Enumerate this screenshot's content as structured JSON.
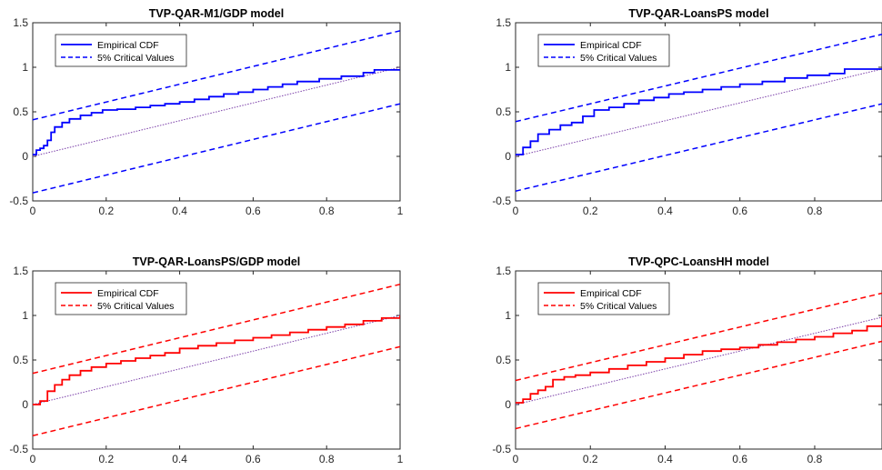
{
  "chart_data": [
    {
      "type": "line",
      "title": "TVP-QAR-M1/GDP model",
      "xlim": [
        0,
        1
      ],
      "ylim": [
        -0.5,
        1.5
      ],
      "xticks": [
        "0",
        "0.2",
        "0.4",
        "0.6",
        "0.8",
        "1"
      ],
      "yticks": [
        "-0.5",
        "0",
        "0.5",
        "1",
        "1.5"
      ],
      "legend_position": "top-left",
      "color": "#0000ff",
      "critical_offset": 0.41,
      "legend": [
        "Empirical CDF",
        "5% Critical Values"
      ],
      "series": [
        {
          "name": "Empirical CDF",
          "style": "solid",
          "x": [
            0,
            0.01,
            0.02,
            0.03,
            0.04,
            0.05,
            0.06,
            0.08,
            0.1,
            0.13,
            0.16,
            0.19,
            0.23,
            0.28,
            0.32,
            0.36,
            0.4,
            0.44,
            0.48,
            0.52,
            0.56,
            0.6,
            0.64,
            0.68,
            0.72,
            0.78,
            0.84,
            0.9,
            0.93,
            1.0
          ],
          "y": [
            0.02,
            0.07,
            0.09,
            0.12,
            0.18,
            0.27,
            0.33,
            0.38,
            0.42,
            0.46,
            0.49,
            0.52,
            0.53,
            0.55,
            0.57,
            0.59,
            0.61,
            0.64,
            0.67,
            0.7,
            0.72,
            0.75,
            0.78,
            0.81,
            0.84,
            0.87,
            0.9,
            0.94,
            0.97,
            0.98
          ]
        }
      ]
    },
    {
      "type": "line",
      "title": "TVP-QAR-LoansPS model",
      "xlim": [
        0,
        0.98
      ],
      "ylim": [
        -0.5,
        1.5
      ],
      "xticks": [
        "0",
        "0.2",
        "0.4",
        "0.6",
        "0.8"
      ],
      "yticks": [
        "-0.5",
        "0",
        "0.5",
        "1",
        "1.5"
      ],
      "legend_position": "top-left",
      "color": "#0000ff",
      "critical_offset": 0.39,
      "legend": [
        "Empirical CDF",
        "5% Critical Values"
      ],
      "series": [
        {
          "name": "Empirical CDF",
          "style": "solid",
          "x": [
            0,
            0.02,
            0.04,
            0.06,
            0.09,
            0.12,
            0.15,
            0.18,
            0.21,
            0.25,
            0.29,
            0.33,
            0.37,
            0.41,
            0.45,
            0.5,
            0.55,
            0.6,
            0.66,
            0.72,
            0.78,
            0.84,
            0.88,
            0.98
          ],
          "y": [
            0.02,
            0.1,
            0.17,
            0.25,
            0.3,
            0.35,
            0.38,
            0.45,
            0.52,
            0.55,
            0.59,
            0.63,
            0.66,
            0.7,
            0.72,
            0.75,
            0.78,
            0.81,
            0.84,
            0.88,
            0.91,
            0.93,
            0.98,
            0.98
          ]
        }
      ]
    },
    {
      "type": "line",
      "title": "TVP-QAR-LoansPS/GDP model",
      "xlim": [
        0,
        1
      ],
      "ylim": [
        -0.5,
        1.5
      ],
      "xticks": [
        "0",
        "0.2",
        "0.4",
        "0.6",
        "0.8",
        "1"
      ],
      "yticks": [
        "-0.5",
        "0",
        "0.5",
        "1",
        "1.5"
      ],
      "legend_position": "top-left",
      "color": "#ff0000",
      "critical_offset": 0.35,
      "legend": [
        "Empirical CDF",
        "5% Critical Values"
      ],
      "series": [
        {
          "name": "Empirical CDF",
          "style": "solid",
          "x": [
            0,
            0.02,
            0.04,
            0.06,
            0.08,
            0.1,
            0.13,
            0.16,
            0.2,
            0.24,
            0.28,
            0.32,
            0.36,
            0.4,
            0.45,
            0.5,
            0.55,
            0.6,
            0.65,
            0.7,
            0.75,
            0.8,
            0.85,
            0.9,
            0.95,
            1.0
          ],
          "y": [
            0.0,
            0.04,
            0.15,
            0.22,
            0.28,
            0.33,
            0.38,
            0.42,
            0.46,
            0.49,
            0.52,
            0.55,
            0.58,
            0.63,
            0.66,
            0.69,
            0.72,
            0.75,
            0.78,
            0.81,
            0.84,
            0.87,
            0.9,
            0.94,
            0.97,
            1.0
          ]
        }
      ]
    },
    {
      "type": "line",
      "title": "TVP-QPC-LoansHH model",
      "xlim": [
        0,
        0.98
      ],
      "ylim": [
        -0.5,
        1.5
      ],
      "xticks": [
        "0",
        "0.2",
        "0.4",
        "0.6",
        "0.8"
      ],
      "yticks": [
        "-0.5",
        "0",
        "0.5",
        "1",
        "1.5"
      ],
      "legend_position": "top-left",
      "color": "#ff0000",
      "critical_offset": 0.27,
      "legend": [
        "Empirical CDF",
        "5% Critical Values"
      ],
      "series": [
        {
          "name": "Empirical CDF",
          "style": "solid",
          "x": [
            0,
            0.02,
            0.04,
            0.06,
            0.08,
            0.1,
            0.13,
            0.16,
            0.2,
            0.25,
            0.3,
            0.35,
            0.4,
            0.45,
            0.5,
            0.55,
            0.6,
            0.65,
            0.7,
            0.75,
            0.8,
            0.85,
            0.9,
            0.94,
            0.98
          ],
          "y": [
            0.02,
            0.06,
            0.12,
            0.16,
            0.2,
            0.28,
            0.31,
            0.33,
            0.36,
            0.4,
            0.44,
            0.48,
            0.52,
            0.56,
            0.6,
            0.62,
            0.64,
            0.67,
            0.7,
            0.73,
            0.76,
            0.8,
            0.83,
            0.88,
            0.98
          ]
        }
      ]
    }
  ]
}
